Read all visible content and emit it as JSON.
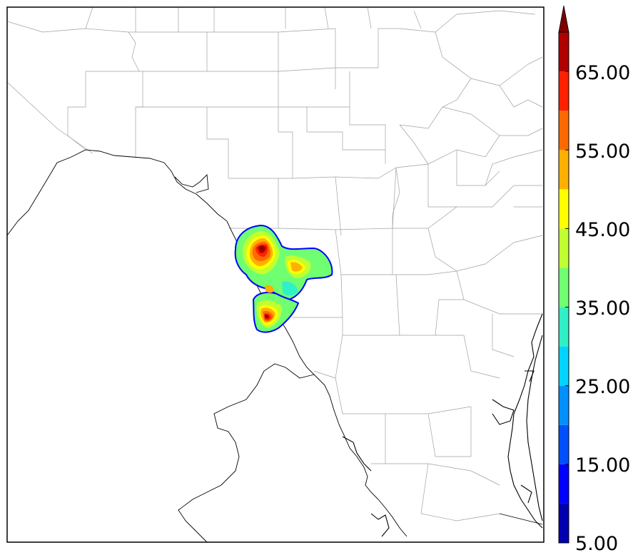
{
  "map": {
    "border_color": "#000000",
    "county_line_color": "#a0a0a0",
    "coast_color": "#000000"
  },
  "colorbar": {
    "tick_labels": [
      "5.00",
      "15.00",
      "25.00",
      "35.00",
      "45.00",
      "55.00",
      "65.00"
    ],
    "range": [
      5,
      70
    ],
    "extend": "max",
    "levels": [
      5,
      10,
      15,
      20,
      25,
      30,
      35,
      40,
      45,
      50,
      55,
      60,
      65,
      70
    ],
    "colors": [
      "#0000b0",
      "#0000ff",
      "#0050ff",
      "#0090ff",
      "#00d4ff",
      "#30f0c8",
      "#70ff70",
      "#c0ff30",
      "#ffff00",
      "#ffb000",
      "#ff6a00",
      "#ff2000",
      "#b00000",
      "#800000"
    ],
    "extension_color": "#800000"
  }
}
